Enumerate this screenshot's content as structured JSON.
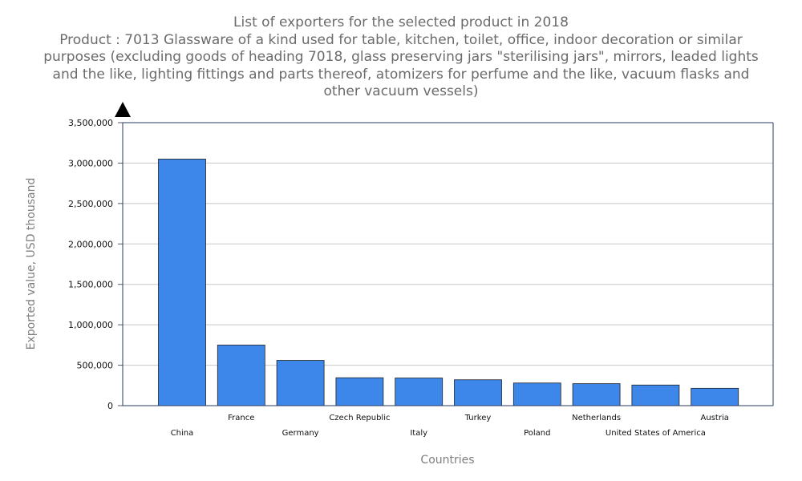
{
  "chart_data": {
    "type": "bar",
    "title": "List of exporters for the selected product in 2018",
    "subtitle": "Product : 7013 Glassware of a kind used for table, kitchen, toilet, office, indoor decoration or similar purposes (excluding goods of heading 7018, glass preserving jars \"sterilising jars\", mirrors, leaded lights and the like, lighting fittings and parts thereof, atomizers for perfume and the like, vacuum flasks and other vacuum vessels)",
    "xlabel": "Countries",
    "ylabel": "Exported value, USD thousand",
    "ylim": [
      0,
      3500000
    ],
    "yticks": [
      0,
      500000,
      1000000,
      1500000,
      2000000,
      2500000,
      3000000,
      3500000
    ],
    "ytick_labels": [
      "0",
      "500,000",
      "1,000,000",
      "1,500,000",
      "2,000,000",
      "2,500,000",
      "3,000,000",
      "3,500,000"
    ],
    "categories": [
      "China",
      "France",
      "Germany",
      "Czech Republic",
      "Italy",
      "Turkey",
      "Poland",
      "Netherlands",
      "United States of America",
      "Austria"
    ],
    "values": [
      3050000,
      750000,
      560000,
      345000,
      342000,
      320000,
      280000,
      272000,
      255000,
      215000
    ],
    "bar_color": "#3d86ea",
    "grid": true
  }
}
